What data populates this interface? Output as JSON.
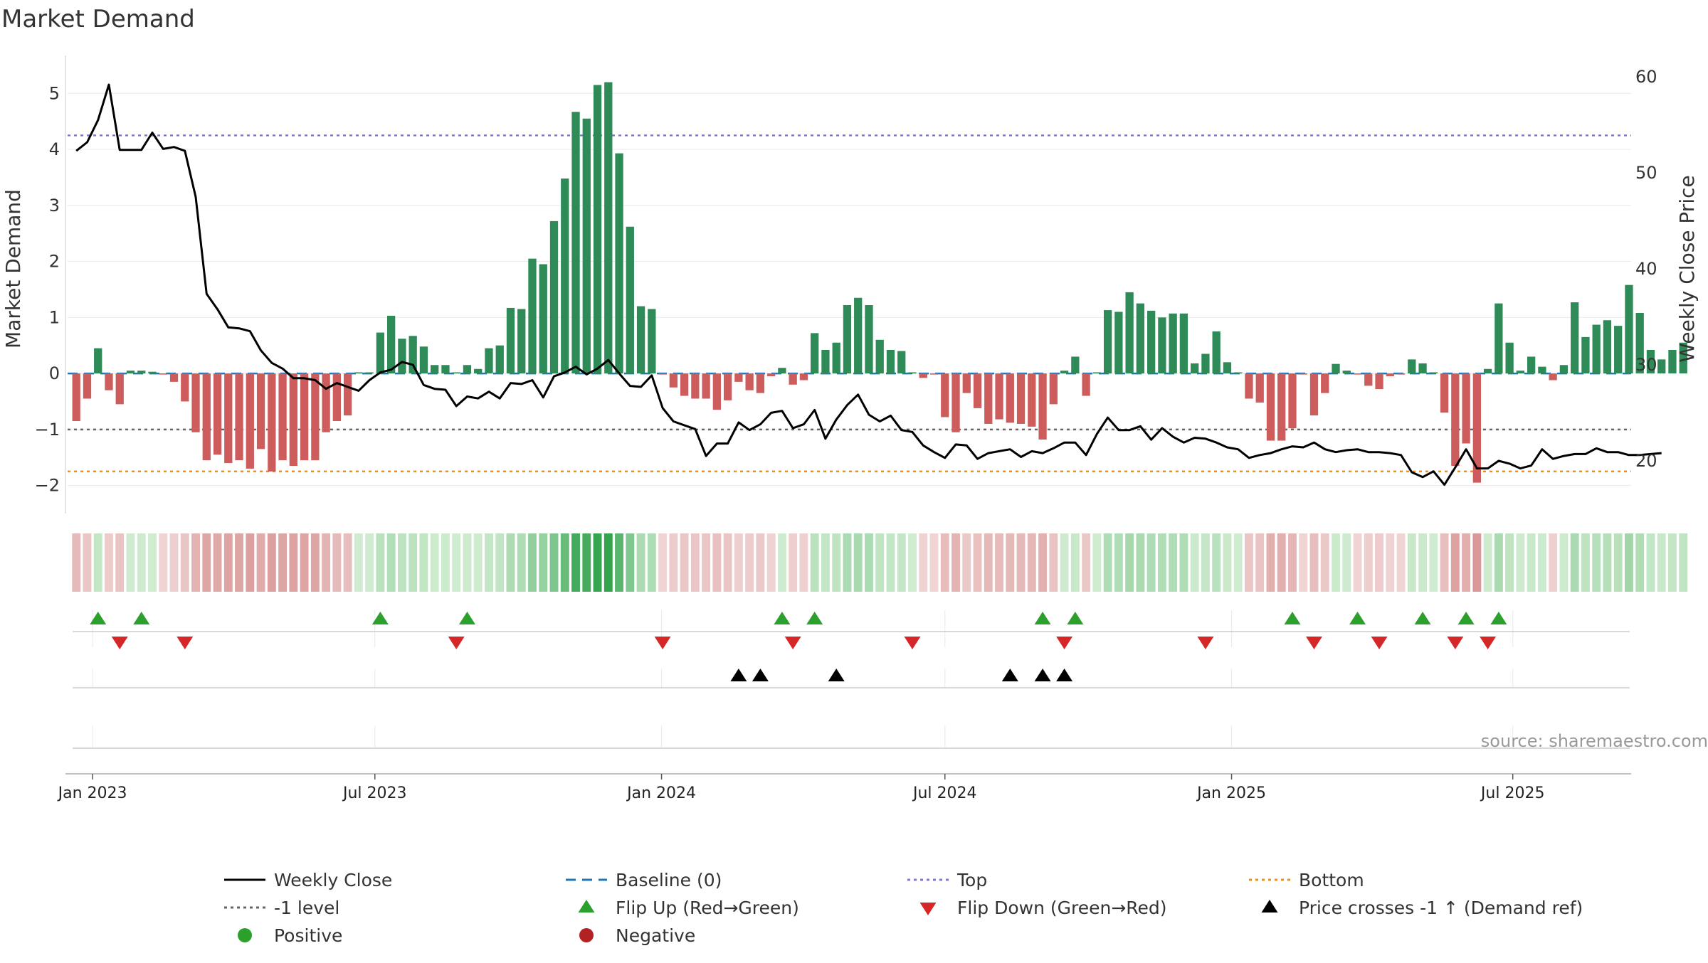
{
  "chart_data": {
    "type": "bar",
    "title": "Market Demand",
    "ylabel": "Market Demand",
    "y2label": "Weekly Close Price",
    "ylim": [
      -2.45,
      5.55
    ],
    "y2lim": [
      14.8,
      61.5
    ],
    "yticks": [
      -2,
      -1,
      0,
      1,
      2,
      3,
      4,
      5
    ],
    "y2ticks": [
      20,
      30,
      40,
      50,
      60
    ],
    "grid": true,
    "reference_lines": {
      "top": 4.25,
      "minus_one": -1.0,
      "bottom": -1.75,
      "baseline": 0
    },
    "xticks": [
      {
        "week": 1.5,
        "label": "Jan 2023"
      },
      {
        "week": 27.5,
        "label": "Jul 2023"
      },
      {
        "week": 53.9,
        "label": "Jan 2024"
      },
      {
        "week": 80,
        "label": "Jul 2024"
      },
      {
        "week": 106.4,
        "label": "Jan 2025"
      },
      {
        "week": 132.3,
        "label": "Jul 2025"
      }
    ],
    "x_week_range": [
      -0.8,
      143.2
    ],
    "demand": [
      -0.85,
      -0.45,
      0.45,
      -0.3,
      -0.55,
      0.05,
      0.05,
      0.03,
      -0.02,
      -0.15,
      -0.5,
      -1.05,
      -1.55,
      -1.45,
      -1.6,
      -1.55,
      -1.7,
      -1.35,
      -1.75,
      -1.55,
      -1.65,
      -1.55,
      -1.55,
      -1.05,
      -0.85,
      -0.75,
      0.02,
      0.02,
      0.73,
      1.03,
      0.62,
      0.67,
      0.48,
      0.15,
      0.15,
      0.02,
      0.15,
      0.08,
      0.45,
      0.5,
      1.17,
      1.15,
      2.05,
      1.95,
      2.72,
      3.48,
      4.67,
      4.55,
      5.15,
      5.2,
      3.93,
      2.62,
      1.2,
      1.15,
      -0.02,
      -0.25,
      -0.4,
      -0.45,
      -0.45,
      -0.65,
      -0.48,
      -0.15,
      -0.3,
      -0.35,
      -0.05,
      0.1,
      -0.2,
      -0.12,
      0.72,
      0.42,
      0.55,
      1.22,
      1.35,
      1.22,
      0.6,
      0.42,
      0.4,
      0.02,
      -0.08,
      -0.02,
      -0.78,
      -1.05,
      -0.35,
      -0.62,
      -0.9,
      -0.82,
      -0.88,
      -0.9,
      -0.95,
      -1.18,
      -0.55,
      0.05,
      0.3,
      -0.4,
      0.02,
      1.13,
      1.1,
      1.45,
      1.25,
      1.12,
      1.0,
      1.07,
      1.07,
      0.18,
      0.35,
      0.75,
      0.2,
      0.02,
      -0.45,
      -0.52,
      -1.2,
      -1.2,
      -0.98,
      -0.02,
      -0.75,
      -0.35,
      0.17,
      0.05,
      -0.02,
      -0.22,
      -0.28,
      -0.05,
      -0.02,
      0.25,
      0.18,
      0.02,
      -0.7,
      -1.65,
      -1.25,
      -1.95,
      0.08,
      1.25,
      0.55,
      0.05,
      0.3,
      0.12,
      -0.12,
      0.15,
      1.27,
      0.65,
      0.87,
      0.95,
      0.85,
      1.58,
      1.08,
      0.42,
      0.25,
      0.42,
      0.55
    ],
    "weekly_close": [
      52.3,
      53.2,
      55.5,
      59.2,
      52.4,
      52.4,
      52.4,
      54.2,
      52.5,
      52.7,
      52.3,
      47.5,
      37.4,
      35.8,
      33.9,
      33.8,
      33.5,
      31.5,
      30.2,
      29.6,
      28.6,
      28.6,
      28.4,
      27.5,
      28.1,
      27.7,
      27.3,
      28.4,
      29.2,
      29.5,
      30.3,
      30.0,
      27.9,
      27.5,
      27.4,
      25.7,
      26.7,
      26.5,
      27.2,
      26.5,
      28.1,
      28.0,
      28.4,
      26.6,
      28.8,
      29.2,
      29.8,
      29.0,
      29.6,
      30.5,
      29.1,
      27.8,
      27.7,
      28.9,
      25.5,
      24.1,
      23.7,
      23.3,
      20.5,
      21.8,
      21.8,
      24.0,
      23.2,
      23.8,
      25.0,
      25.2,
      23.4,
      23.8,
      25.3,
      22.3,
      24.3,
      25.8,
      26.9,
      24.8,
      24.1,
      24.7,
      23.2,
      23.0,
      21.6,
      20.9,
      20.3,
      21.7,
      21.6,
      20.2,
      20.8,
      21.0,
      21.2,
      20.4,
      21.0,
      20.8,
      21.3,
      21.9,
      21.9,
      20.6,
      22.8,
      24.5,
      23.2,
      23.2,
      23.6,
      22.2,
      23.4,
      22.5,
      21.9,
      22.4,
      22.3,
      21.9,
      21.4,
      21.2,
      20.3,
      20.6,
      20.8,
      21.2,
      21.5,
      21.4,
      21.9,
      21.2,
      20.9,
      21.1,
      21.2,
      20.9,
      20.9,
      20.8,
      20.6,
      18.8,
      18.3,
      18.9,
      17.5,
      19.3,
      21.2,
      19.2,
      19.2,
      20.0,
      19.7,
      19.2,
      19.5,
      21.2,
      20.2,
      20.5,
      20.7,
      20.7,
      21.3,
      20.9,
      20.9,
      20.6,
      20.6,
      20.7,
      20.8
    ],
    "flip_up_weeks": [
      2,
      6,
      28,
      36,
      65,
      68,
      89,
      92,
      112,
      118,
      124,
      128,
      131
    ],
    "flip_down_weeks": [
      4,
      10,
      35,
      54,
      66,
      77,
      91,
      104,
      114,
      120,
      127,
      130
    ],
    "price_cross_weeks": [
      61,
      63,
      70,
      86,
      89,
      91
    ],
    "heatmap_scale": "demand",
    "source": "source: sharemaestro.com",
    "legend": [
      {
        "label": "Weekly Close",
        "style": "line-solid",
        "color": "#000000"
      },
      {
        "label": "Baseline (0)",
        "style": "line-dash",
        "color": "#1f77b4"
      },
      {
        "label": "Top",
        "style": "line-dot",
        "color": "#7b7bd6"
      },
      {
        "label": "Bottom",
        "style": "line-dot",
        "color": "#ee8e1d"
      },
      {
        "label": "-1 level",
        "style": "line-dot",
        "color": "#666666"
      },
      {
        "label": "Flip Up (Red→Green)",
        "style": "tri-up",
        "color": "#2ca02c"
      },
      {
        "label": "Flip Down (Green→Red)",
        "style": "tri-down",
        "color": "#d62728"
      },
      {
        "label": "Price crosses -1 ↑ (Demand ref)",
        "style": "tri-up",
        "color": "#000000"
      },
      {
        "label": "Positive",
        "style": "dot",
        "color": "#2ca02c"
      },
      {
        "label": "Negative",
        "style": "dot",
        "color": "#b22222"
      }
    ],
    "colors": {
      "positive_bar": "#2e8b57",
      "negative_bar": "#cd5c5c",
      "flip_up": "#2ca02c",
      "flip_down": "#d62728",
      "cross": "#000000"
    }
  }
}
